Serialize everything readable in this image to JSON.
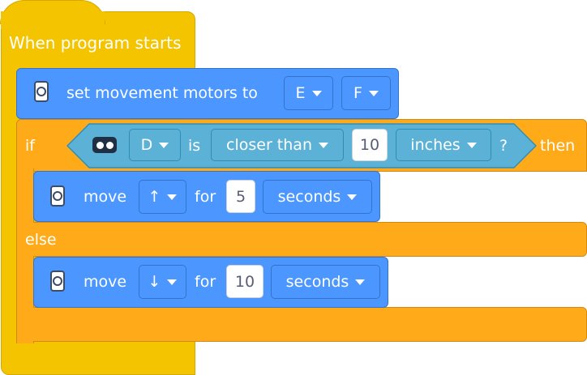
{
  "hat": {
    "title": "When program starts"
  },
  "block_set_motors": {
    "label": "set movement motors to",
    "left_motor": "E",
    "right_motor": "F",
    "icon": "motor-icon"
  },
  "if_else": {
    "if_label": "if",
    "then_label": "then",
    "else_label": "else",
    "condition": {
      "sensor_icon": "distance-sensor-icon",
      "port": "D",
      "is_label": "is",
      "comparison": "closer than",
      "value": "10",
      "unit": "inches",
      "question_mark": "?"
    }
  },
  "move_if": {
    "label": "move",
    "direction": "↑",
    "for_label": "for",
    "value": "5",
    "unit": "seconds",
    "icon": "motor-icon"
  },
  "move_else": {
    "label": "move",
    "direction": "↓",
    "for_label": "for",
    "value": "10",
    "unit": "seconds",
    "icon": "motor-icon"
  },
  "colors": {
    "event_yellow": "#f4c400",
    "control_orange": "#ffab19",
    "motion_blue": "#4c97ff",
    "sensor_teal": "#5cb1d6"
  }
}
